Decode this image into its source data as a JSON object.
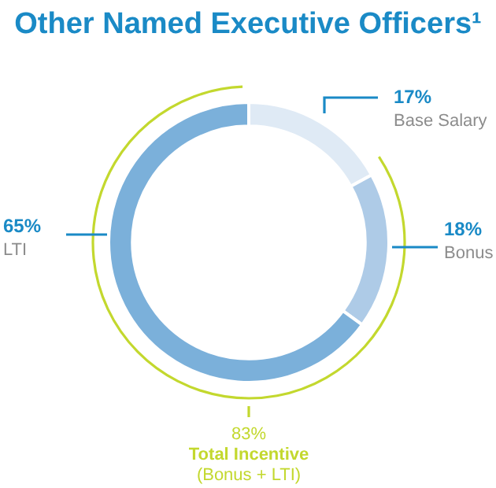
{
  "chart_data": {
    "type": "donut",
    "title": "Other Named Executive Officers¹",
    "categories": [
      "Base Salary",
      "Bonus",
      "LTI"
    ],
    "values": [
      17,
      18,
      65
    ],
    "value_labels": [
      "17%",
      "18%",
      "65%"
    ],
    "colors": [
      "#dfeaf5",
      "#aecbe7",
      "#7bb0da"
    ],
    "legend": false,
    "annotations": [
      "83%",
      "Total Incentive",
      "(Bonus + LTI)"
    ]
  }
}
